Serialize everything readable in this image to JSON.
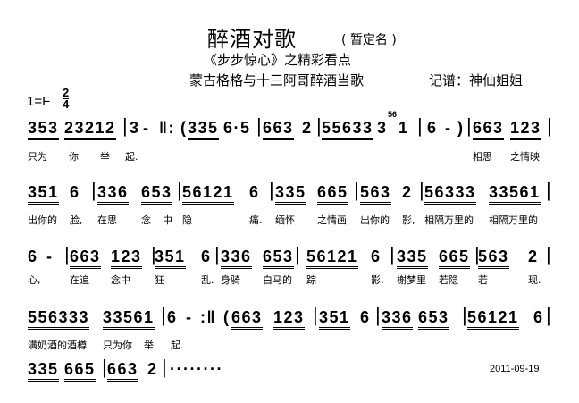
{
  "header": {
    "title": "醉酒对歌",
    "title_note": "( 暂定名 )",
    "subtitle": "《步步惊心》之精彩看点",
    "description": "蒙古格格与十三阿哥醉酒当歌",
    "notator": "记谱：神仙姐姐",
    "key": "1=F",
    "time_signature": {
      "numerator": "2",
      "denominator": "4"
    }
  },
  "rows": [
    {
      "notes": [
        "353",
        "23212",
        "|",
        "3",
        "-",
        "‖:",
        "(",
        "335",
        "6·5",
        "|",
        "663",
        "2",
        "|",
        "55633",
        "3",
        "56",
        "1",
        "|",
        "6",
        "-",
        ")",
        "|",
        "663",
        "123",
        "|"
      ],
      "lyrics": [
        "只为",
        "你",
        "举",
        "起.",
        "相思",
        "之情映"
      ]
    },
    {
      "notes": [
        "351",
        "6",
        "|",
        "336",
        "653",
        "|",
        "56121",
        "6",
        "|",
        "335",
        "665",
        "|",
        "563",
        "2",
        "|",
        "56333",
        "33561",
        "|"
      ],
      "lyrics": [
        "出你的",
        "脸,",
        "在思",
        "念",
        "中",
        "隐",
        "痛.",
        "缅怀",
        "之情画",
        "出你的",
        "影,",
        "相隔万里的",
        "相隔万里的"
      ]
    },
    {
      "notes": [
        "6",
        "-",
        "|",
        "663",
        "123",
        "|",
        "351",
        "6",
        "|",
        "336",
        "653",
        "|",
        "56121",
        "6",
        "|",
        "335",
        "665",
        "|",
        "563",
        "2",
        "|"
      ],
      "lyrics": [
        "心,",
        "在追",
        "念中",
        "狂",
        "乱.",
        "身骑",
        "白马的",
        "踪",
        "影,",
        "榭梦里",
        "若隐",
        "若",
        "现."
      ]
    },
    {
      "notes": [
        "556333",
        "33561",
        "|",
        "6",
        "-",
        ":‖",
        "(",
        "663",
        "123",
        "|",
        "351",
        "6",
        "|",
        "336",
        "653",
        "|",
        "56121",
        "6",
        "|"
      ],
      "lyrics": [
        "满奶酒的酒樽",
        "只为你",
        "举",
        "起."
      ]
    },
    {
      "notes": [
        "335",
        "665",
        "|",
        "663",
        "2",
        "|",
        "········"
      ],
      "lyrics": []
    }
  ],
  "date": "2011-09-19"
}
